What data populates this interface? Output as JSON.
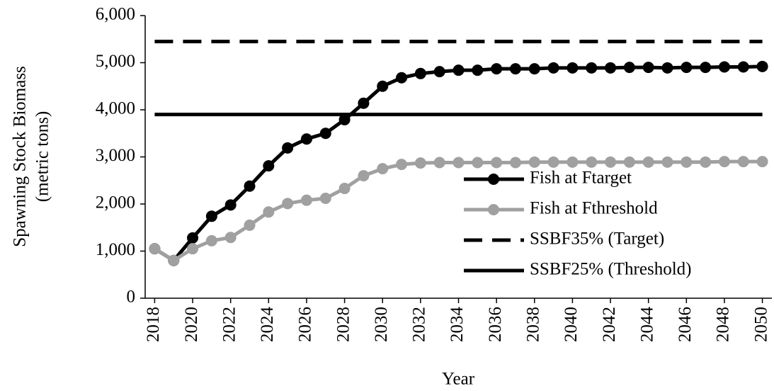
{
  "chart_data": {
    "type": "line",
    "ylabel": [
      "Spawning Stock Biomass",
      "(metric tons)"
    ],
    "xlabel": "Year",
    "x": [
      2018,
      2019,
      2020,
      2021,
      2022,
      2023,
      2024,
      2025,
      2026,
      2027,
      2028,
      2029,
      2030,
      2031,
      2032,
      2033,
      2034,
      2035,
      2036,
      2037,
      2038,
      2039,
      2040,
      2041,
      2042,
      2043,
      2044,
      2045,
      2046,
      2047,
      2048,
      2049,
      2050
    ],
    "xlim": [
      2017.5,
      2050.5
    ],
    "xticks": [
      2018,
      2020,
      2022,
      2024,
      2026,
      2028,
      2030,
      2032,
      2034,
      2036,
      2038,
      2040,
      2042,
      2044,
      2046,
      2048,
      2050
    ],
    "ylim": [
      0,
      6000
    ],
    "yticks": [
      0,
      {
        "value": 1000,
        "label": "1,000"
      },
      {
        "value": 2000,
        "label": "2,000"
      },
      {
        "value": 3000,
        "label": "3,000"
      },
      {
        "value": 4000,
        "label": "4,000"
      },
      {
        "value": 5000,
        "label": "5,000"
      },
      {
        "value": 6000,
        "label": "6,000"
      }
    ],
    "legend": "lower right",
    "series": [
      {
        "name": "Fish at Ftarget",
        "color": "#000000",
        "style": "solid",
        "markers": true,
        "values": [
          1050,
          800,
          1280,
          1740,
          1980,
          2380,
          2810,
          3190,
          3380,
          3500,
          3790,
          4140,
          4500,
          4680,
          4770,
          4810,
          4840,
          4840,
          4870,
          4870,
          4870,
          4890,
          4890,
          4890,
          4890,
          4900,
          4900,
          4890,
          4900,
          4900,
          4910,
          4910,
          4920
        ]
      },
      {
        "name": "Fish at Fthreshold",
        "color": "#a0a0a0",
        "style": "solid",
        "markers": true,
        "values": [
          1050,
          800,
          1050,
          1220,
          1290,
          1550,
          1830,
          2010,
          2080,
          2120,
          2330,
          2600,
          2750,
          2840,
          2870,
          2880,
          2880,
          2880,
          2880,
          2880,
          2890,
          2890,
          2890,
          2890,
          2890,
          2890,
          2890,
          2890,
          2890,
          2890,
          2900,
          2900,
          2900
        ]
      },
      {
        "name": "SSBF35% (Target)",
        "color": "#000000",
        "style": "dashed",
        "markers": false,
        "values": [
          5450,
          5450,
          5450,
          5450,
          5450,
          5450,
          5450,
          5450,
          5450,
          5450,
          5450,
          5450,
          5450,
          5450,
          5450,
          5450,
          5450,
          5450,
          5450,
          5450,
          5450,
          5450,
          5450,
          5450,
          5450,
          5450,
          5450,
          5450,
          5450,
          5450,
          5450,
          5450,
          5450
        ]
      },
      {
        "name": "SSBF25% (Threshold)",
        "color": "#000000",
        "style": "solid",
        "markers": false,
        "values": [
          3900,
          3900,
          3900,
          3900,
          3900,
          3900,
          3900,
          3900,
          3900,
          3900,
          3900,
          3900,
          3900,
          3900,
          3900,
          3900,
          3900,
          3900,
          3900,
          3900,
          3900,
          3900,
          3900,
          3900,
          3900,
          3900,
          3900,
          3900,
          3900,
          3900,
          3900,
          3900,
          3900
        ]
      }
    ]
  }
}
